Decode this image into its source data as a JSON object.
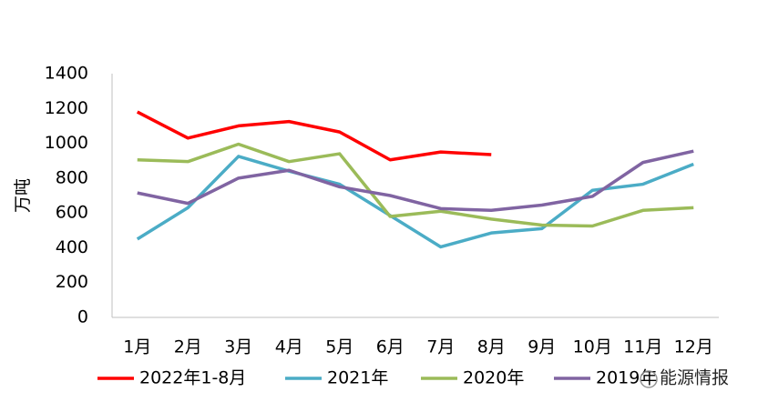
{
  "chart_data": {
    "type": "line",
    "ylabel": "万吨",
    "categories": [
      "1月",
      "2月",
      "3月",
      "4月",
      "5月",
      "6月",
      "7月",
      "8月",
      "9月",
      "10月",
      "11月",
      "12月"
    ],
    "series": [
      {
        "name": "2022年1-8月",
        "color": "#ff0000",
        "values": [
          1180,
          1030,
          1100,
          1125,
          1065,
          905,
          950,
          935,
          null,
          null,
          null,
          null
        ]
      },
      {
        "name": "2021年",
        "color": "#4bacc6",
        "values": [
          450,
          630,
          925,
          840,
          765,
          585,
          405,
          485,
          510,
          730,
          765,
          880
        ]
      },
      {
        "name": "2020年",
        "color": "#9bbb59",
        "values": [
          905,
          895,
          995,
          895,
          940,
          580,
          610,
          565,
          530,
          525,
          615,
          630
        ]
      },
      {
        "name": "2019年",
        "color": "#8064a2",
        "values": [
          715,
          655,
          800,
          845,
          750,
          700,
          625,
          615,
          645,
          695,
          890,
          955
        ]
      }
    ],
    "ylim": [
      0,
      1400
    ],
    "yticks": [
      0,
      200,
      400,
      600,
      800,
      1000,
      1200,
      1400
    ],
    "grid": false,
    "legend": "bottom"
  },
  "watermark": "能源情报"
}
